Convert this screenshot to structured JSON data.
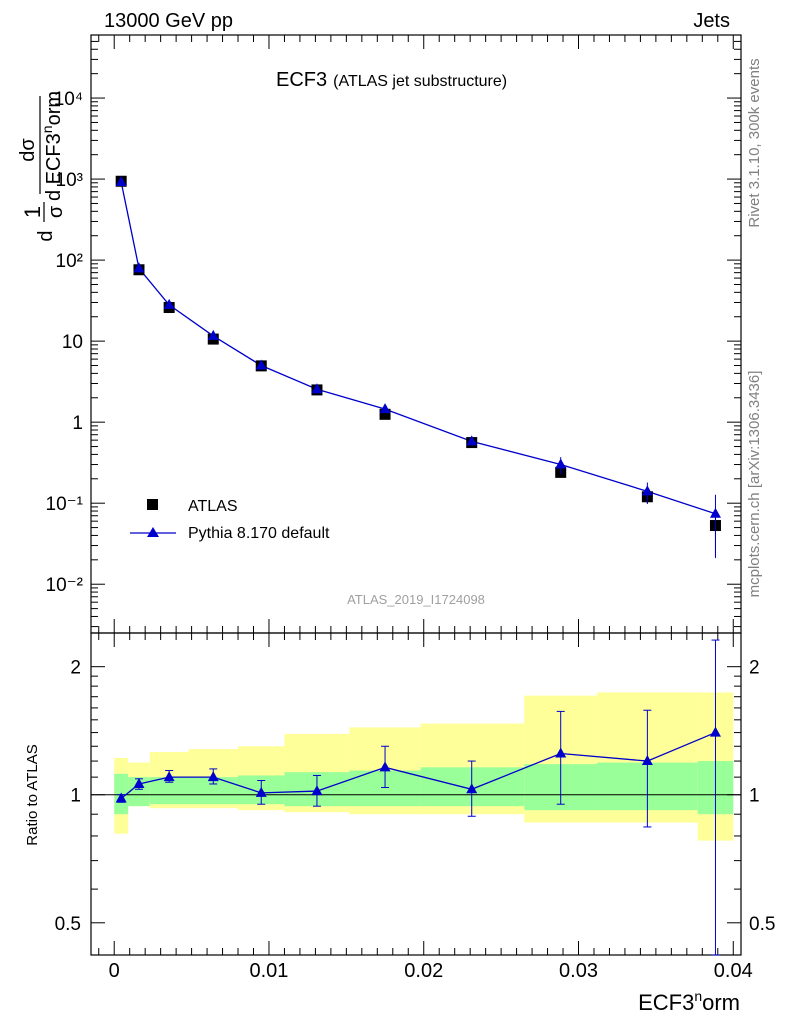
{
  "header": {
    "left": "13000 GeV pp",
    "right": "Jets"
  },
  "side_labels": {
    "top": "Rivet 3.1.10,  300k events",
    "bottom": "mcplots.cern.ch [arXiv:1306.3436]"
  },
  "main_title": {
    "main": "ECF3",
    "sub": "(ATLAS jet substructure)"
  },
  "analysis_id": "ATLAS_2019_I1724098",
  "y_axis_label": {
    "frac": "1",
    "sigma": "σ",
    "d": "d",
    "dsigma": "dσ",
    "var": "d ECF3",
    "sup": "n",
    "tail": "orm"
  },
  "ratio_ylabel": "Ratio to ATLAS",
  "x_axis_label": {
    "base": "ECF3",
    "sup": "n",
    "tail": "orm"
  },
  "legend": {
    "data": "ATLAS",
    "mc": "Pythia 8.170 default"
  },
  "colors": {
    "data": "#000000",
    "mc": "#0000cc",
    "band_inner": "#99ff99",
    "band_outer": "#ffff99",
    "unity_line": "#000000"
  },
  "chart_data": [
    {
      "type": "scatter",
      "scale": "log",
      "xlim": [
        -0.0015,
        0.0405
      ],
      "ylim": [
        0.0025,
        60000
      ],
      "x_ticks": [
        "0",
        "0.01",
        "0.02",
        "0.03",
        "0.04"
      ],
      "y_ticks": [
        "10⁻²",
        "10⁻¹",
        "1",
        "10",
        "10²",
        "10³",
        "10⁴"
      ],
      "bins": [
        [
          0.0,
          0.0009
        ],
        [
          0.0009,
          0.0023
        ],
        [
          0.0023,
          0.0048
        ],
        [
          0.0048,
          0.008
        ],
        [
          0.008,
          0.011
        ],
        [
          0.011,
          0.0152
        ],
        [
          0.0152,
          0.0198
        ],
        [
          0.0198,
          0.0265
        ],
        [
          0.0265,
          0.0312
        ],
        [
          0.0312,
          0.0377
        ],
        [
          0.0377,
          0.04
        ]
      ],
      "x": [
        0.00045,
        0.0016,
        0.00355,
        0.0064,
        0.0095,
        0.0131,
        0.0175,
        0.0231,
        0.02885,
        0.03445,
        0.03885
      ],
      "series": [
        {
          "name": "ATLAS",
          "marker": "square",
          "y": [
            940,
            76,
            26,
            10.6,
            4.95,
            2.5,
            1.25,
            0.56,
            0.24,
            0.12,
            0.053
          ],
          "err": [
            0,
            0,
            0,
            0,
            0,
            0,
            0,
            0,
            0,
            0.022,
            0.031
          ]
        },
        {
          "name": "Pythia 8.170 default",
          "marker": "triangle",
          "y": [
            920,
            79,
            28,
            11.6,
            5.0,
            2.55,
            1.45,
            0.58,
            0.3,
            0.14,
            0.074
          ],
          "err": [
            0,
            0,
            0,
            0.9,
            0,
            0,
            0.1,
            0.05,
            0.07,
            0.04,
            0.053
          ]
        }
      ]
    },
    {
      "type": "scatter",
      "scale": "log",
      "ylabel": "Ratio to ATLAS",
      "xlim": [
        -0.0015,
        0.0405
      ],
      "ylim": [
        0.42,
        2.4
      ],
      "y_ticks": [
        "0.5",
        "1",
        "2"
      ],
      "x": [
        0.00045,
        0.0016,
        0.00355,
        0.0064,
        0.0095,
        0.0131,
        0.0175,
        0.0231,
        0.02885,
        0.03445,
        0.03885
      ],
      "ratio": [
        0.98,
        1.06,
        1.1,
        1.1,
        1.01,
        1.02,
        1.16,
        1.03,
        1.25,
        1.2,
        1.4
      ],
      "ratio_err_up": [
        0.02,
        0.03,
        0.04,
        0.05,
        0.07,
        0.09,
        0.14,
        0.17,
        0.32,
        0.38,
        0.91
      ],
      "ratio_err_down": [
        0.02,
        0.03,
        0.03,
        0.04,
        0.06,
        0.08,
        0.12,
        0.14,
        0.3,
        0.36,
        1.04
      ],
      "band_inner": [
        [
          0.9,
          1.12
        ],
        [
          0.94,
          1.1
        ],
        [
          0.95,
          1.1
        ],
        [
          0.95,
          1.1
        ],
        [
          0.95,
          1.11
        ],
        [
          0.94,
          1.13
        ],
        [
          0.94,
          1.14
        ],
        [
          0.94,
          1.16
        ],
        [
          0.92,
          1.18
        ],
        [
          0.92,
          1.19
        ],
        [
          0.9,
          1.2
        ]
      ],
      "band_outer": [
        [
          0.81,
          1.22
        ],
        [
          0.94,
          1.19
        ],
        [
          0.93,
          1.26
        ],
        [
          0.93,
          1.28
        ],
        [
          0.92,
          1.3
        ],
        [
          0.91,
          1.39
        ],
        [
          0.9,
          1.44
        ],
        [
          0.9,
          1.47
        ],
        [
          0.86,
          1.71
        ],
        [
          0.86,
          1.74
        ],
        [
          0.78,
          1.74
        ]
      ]
    }
  ]
}
